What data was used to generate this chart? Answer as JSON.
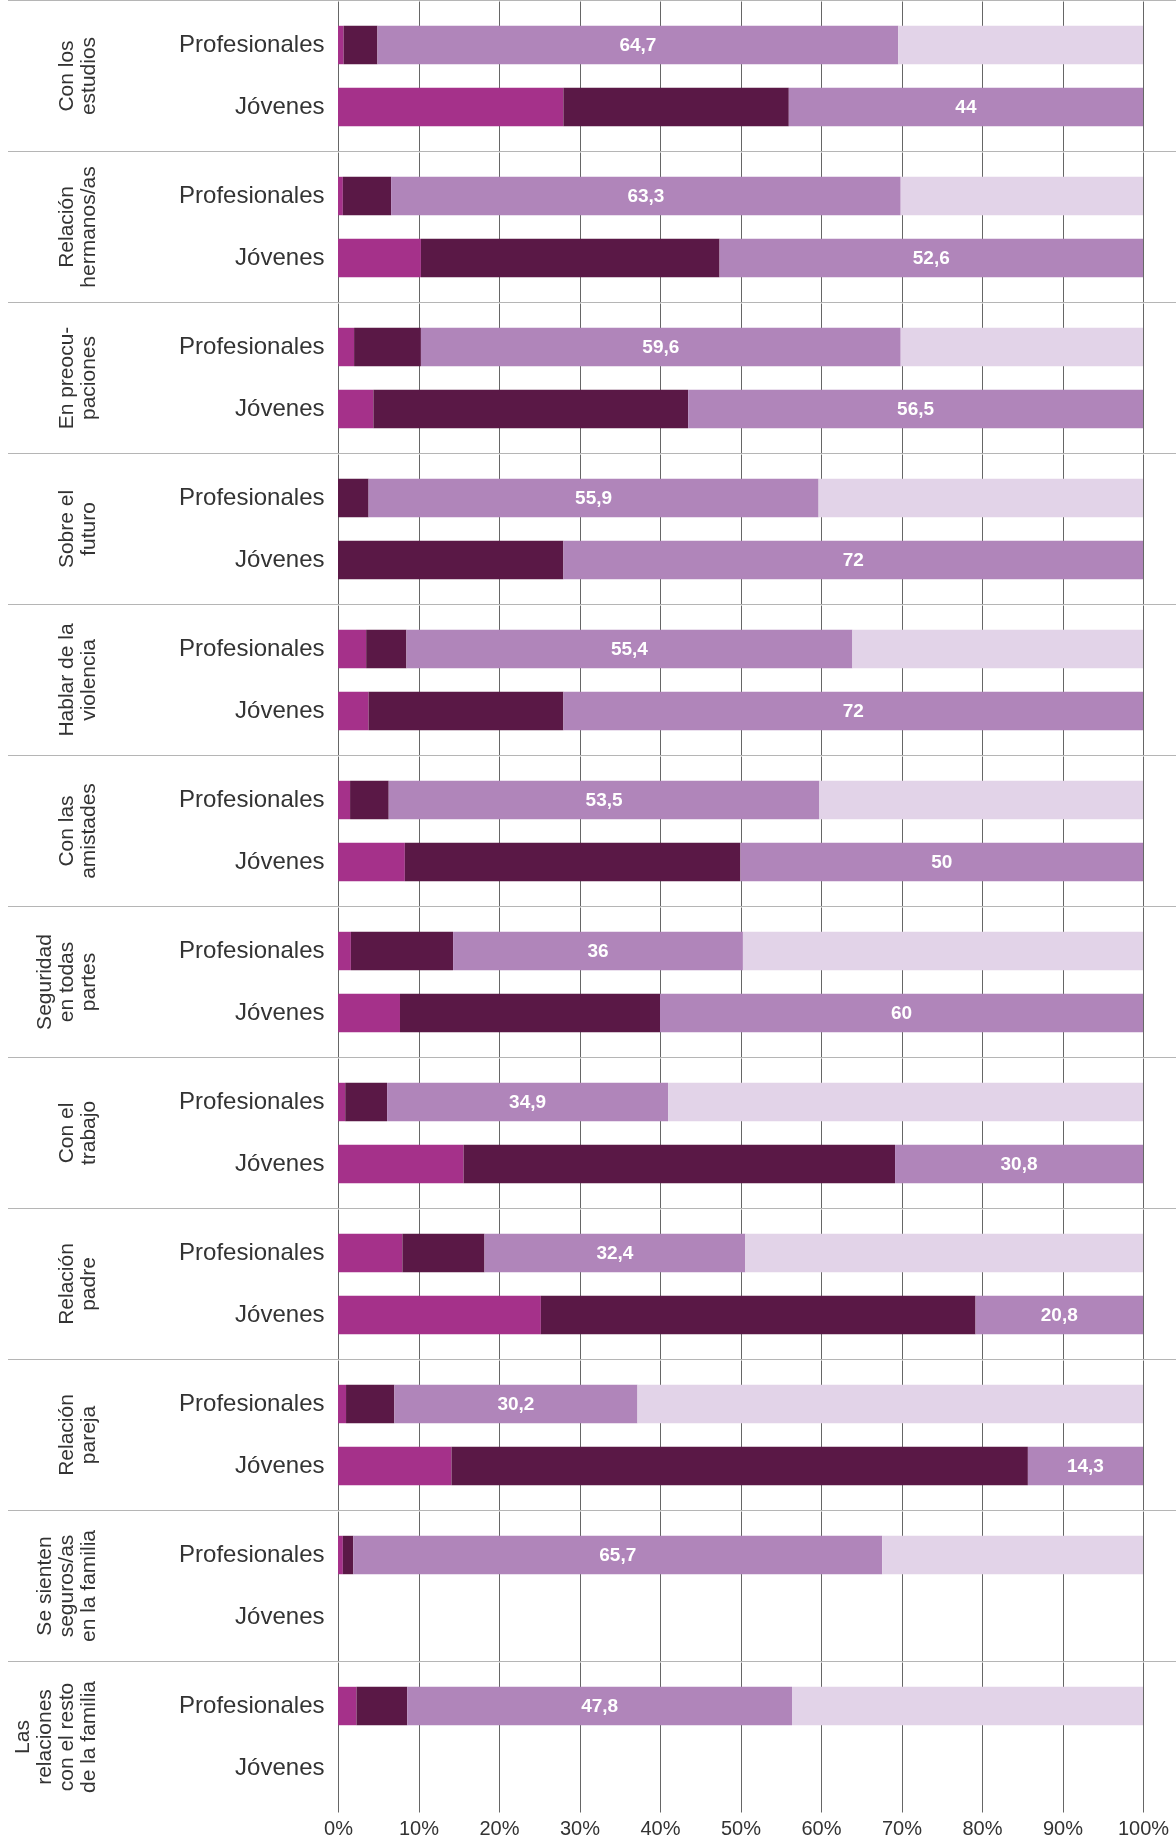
{
  "chart_data": [
    {
      "type": "bar",
      "orientation": "horizontal",
      "stacked": true,
      "title": "Con los\nestudios",
      "categories": [
        "Profesionales",
        "Jóvenes"
      ],
      "series": [
        {
          "color": "#a5318a",
          "values": [
            0.7,
            28
          ]
        },
        {
          "color": "#5a1846",
          "values": [
            4.2,
            28
          ]
        },
        {
          "color": "#b085ba",
          "values": [
            64.7,
            44
          ],
          "value_labels": [
            "64,7",
            "44"
          ]
        },
        {
          "color": "#e2d3e8",
          "values": [
            30.4,
            null
          ]
        }
      ],
      "xlim": [
        0,
        100
      ],
      "xticks": [
        0,
        10,
        20,
        30,
        40,
        50,
        60,
        70,
        80,
        90,
        100
      ],
      "grid": "x",
      "tick_labels": "y"
    },
    {
      "type": "bar",
      "orientation": "horizontal",
      "stacked": true,
      "title": "Relación\nhermanos/as",
      "categories": [
        "Profesionales",
        "Jóvenes"
      ],
      "series": [
        {
          "color": "#a5318a",
          "values": [
            0.6,
            10.3
          ]
        },
        {
          "color": "#5a1846",
          "values": [
            6.0,
            37.1
          ]
        },
        {
          "color": "#b085ba",
          "values": [
            63.3,
            52.6
          ],
          "value_labels": [
            "63,3",
            "52,6"
          ]
        },
        {
          "color": "#e2d3e8",
          "values": [
            30.1,
            null
          ]
        }
      ],
      "xlim": [
        0,
        100
      ],
      "xticks": [
        0,
        10,
        20,
        30,
        40,
        50,
        60,
        70,
        80,
        90,
        100
      ],
      "grid": "x",
      "tick_labels": "y"
    },
    {
      "type": "bar",
      "orientation": "horizontal",
      "stacked": true,
      "title": "En preocu-\npaciones",
      "categories": [
        "Profesionales",
        "Jóvenes"
      ],
      "series": [
        {
          "color": "#a5318a",
          "values": [
            2.0,
            4.4
          ]
        },
        {
          "color": "#5a1846",
          "values": [
            8.3,
            39.1
          ]
        },
        {
          "color": "#b085ba",
          "values": [
            59.6,
            56.5
          ],
          "value_labels": [
            "59,6",
            "56,5"
          ]
        },
        {
          "color": "#e2d3e8",
          "values": [
            30.1,
            null
          ]
        }
      ],
      "xlim": [
        0,
        100
      ],
      "xticks": [
        0,
        10,
        20,
        30,
        40,
        50,
        60,
        70,
        80,
        90,
        100
      ],
      "grid": "x",
      "tick_labels": "y"
    },
    {
      "type": "bar",
      "orientation": "horizontal",
      "stacked": true,
      "title": "Sobre el\nfuturo",
      "categories": [
        "Profesionales",
        "Jóvenes"
      ],
      "series": [
        {
          "color": "#a5318a",
          "values": [
            null,
            null
          ]
        },
        {
          "color": "#5a1846",
          "values": [
            3.8,
            28
          ]
        },
        {
          "color": "#b085ba",
          "values": [
            55.9,
            72
          ],
          "value_labels": [
            "55,9",
            "72"
          ]
        },
        {
          "color": "#e2d3e8",
          "values": [
            40.3,
            null
          ]
        }
      ],
      "xlim": [
        0,
        100
      ],
      "xticks": [
        0,
        10,
        20,
        30,
        40,
        50,
        60,
        70,
        80,
        90,
        100
      ],
      "grid": "x",
      "tick_labels": "y"
    },
    {
      "type": "bar",
      "orientation": "horizontal",
      "stacked": true,
      "title": "Hablar de la\nviolencia",
      "categories": [
        "Profesionales",
        "Jóvenes"
      ],
      "series": [
        {
          "color": "#a5318a",
          "values": [
            3.5,
            3.8
          ]
        },
        {
          "color": "#5a1846",
          "values": [
            5.0,
            24.2
          ]
        },
        {
          "color": "#b085ba",
          "values": [
            55.4,
            72
          ],
          "value_labels": [
            "55,4",
            "72"
          ]
        },
        {
          "color": "#e2d3e8",
          "values": [
            36.1,
            null
          ]
        }
      ],
      "xlim": [
        0,
        100
      ],
      "xticks": [
        0,
        10,
        20,
        30,
        40,
        50,
        60,
        70,
        80,
        90,
        100
      ],
      "grid": "x",
      "tick_labels": "y"
    },
    {
      "type": "bar",
      "orientation": "horizontal",
      "stacked": true,
      "title": "Con las\namistades",
      "categories": [
        "Profesionales",
        "Jóvenes"
      ],
      "series": [
        {
          "color": "#a5318a",
          "values": [
            1.5,
            8.3
          ]
        },
        {
          "color": "#5a1846",
          "values": [
            4.8,
            41.7
          ]
        },
        {
          "color": "#b085ba",
          "values": [
            53.5,
            50
          ],
          "value_labels": [
            "53,5",
            "50"
          ]
        },
        {
          "color": "#e2d3e8",
          "values": [
            40.2,
            null
          ]
        }
      ],
      "xlim": [
        0,
        100
      ],
      "xticks": [
        0,
        10,
        20,
        30,
        40,
        50,
        60,
        70,
        80,
        90,
        100
      ],
      "grid": "x",
      "tick_labels": "y"
    },
    {
      "type": "bar",
      "orientation": "horizontal",
      "stacked": true,
      "title": "Seguridad\nen todas\npartes",
      "categories": [
        "Profesionales",
        "Jóvenes"
      ],
      "series": [
        {
          "color": "#a5318a",
          "values": [
            1.6,
            7.7
          ]
        },
        {
          "color": "#5a1846",
          "values": [
            12.7,
            32.3
          ]
        },
        {
          "color": "#b085ba",
          "values": [
            36,
            60
          ],
          "value_labels": [
            "36",
            "60"
          ]
        },
        {
          "color": "#e2d3e8",
          "values": [
            49.7,
            null
          ]
        }
      ],
      "xlim": [
        0,
        100
      ],
      "xticks": [
        0,
        10,
        20,
        30,
        40,
        50,
        60,
        70,
        80,
        90,
        100
      ],
      "grid": "x",
      "tick_labels": "y"
    },
    {
      "type": "bar",
      "orientation": "horizontal",
      "stacked": true,
      "title": "Con el\ntrabajo",
      "categories": [
        "Profesionales",
        "Jóvenes"
      ],
      "series": [
        {
          "color": "#a5318a",
          "values": [
            0.9,
            15.6
          ]
        },
        {
          "color": "#5a1846",
          "values": [
            5.2,
            53.6
          ]
        },
        {
          "color": "#b085ba",
          "values": [
            34.9,
            30.8
          ],
          "value_labels": [
            "34,9",
            "30,8"
          ]
        },
        {
          "color": "#e2d3e8",
          "values": [
            59,
            null
          ]
        }
      ],
      "xlim": [
        0,
        100
      ],
      "xticks": [
        0,
        10,
        20,
        30,
        40,
        50,
        60,
        70,
        80,
        90,
        100
      ],
      "grid": "x",
      "tick_labels": "y"
    },
    {
      "type": "bar",
      "orientation": "horizontal",
      "stacked": true,
      "title": "Relación\npadre",
      "categories": [
        "Profesionales",
        "Jóvenes"
      ],
      "series": [
        {
          "color": "#a5318a",
          "values": [
            8.0,
            25.2
          ]
        },
        {
          "color": "#5a1846",
          "values": [
            10.2,
            54.0
          ]
        },
        {
          "color": "#b085ba",
          "values": [
            32.4,
            20.8
          ],
          "value_labels": [
            "32,4",
            "20,8"
          ]
        },
        {
          "color": "#e2d3e8",
          "values": [
            49.4,
            null
          ]
        }
      ],
      "xlim": [
        0,
        100
      ],
      "xticks": [
        0,
        10,
        20,
        30,
        40,
        50,
        60,
        70,
        80,
        90,
        100
      ],
      "grid": "x",
      "tick_labels": "y"
    },
    {
      "type": "bar",
      "orientation": "horizontal",
      "stacked": true,
      "title": "Relación\npareja",
      "categories": [
        "Profesionales",
        "Jóvenes"
      ],
      "series": [
        {
          "color": "#a5318a",
          "values": [
            1.0,
            14.1
          ]
        },
        {
          "color": "#5a1846",
          "values": [
            6.0,
            71.6
          ]
        },
        {
          "color": "#b085ba",
          "values": [
            30.2,
            14.3
          ],
          "value_labels": [
            "30,2",
            "14,3"
          ]
        },
        {
          "color": "#e2d3e8",
          "values": [
            62.8,
            null
          ]
        }
      ],
      "xlim": [
        0,
        100
      ],
      "xticks": [
        0,
        10,
        20,
        30,
        40,
        50,
        60,
        70,
        80,
        90,
        100
      ],
      "grid": "x",
      "tick_labels": "y"
    },
    {
      "type": "bar",
      "orientation": "horizontal",
      "stacked": true,
      "title": "Se sienten\nseguros/as\nen la familia",
      "categories": [
        "Profesionales",
        "Jóvenes"
      ],
      "series": [
        {
          "color": "#a5318a",
          "values": [
            0.6,
            null
          ]
        },
        {
          "color": "#5a1846",
          "values": [
            1.3,
            null
          ]
        },
        {
          "color": "#b085ba",
          "values": [
            65.7,
            null
          ],
          "value_labels": [
            "65,7",
            null
          ]
        },
        {
          "color": "#e2d3e8",
          "values": [
            32.4,
            null
          ]
        }
      ],
      "xlim": [
        0,
        100
      ],
      "xticks": [
        0,
        10,
        20,
        30,
        40,
        50,
        60,
        70,
        80,
        90,
        100
      ],
      "grid": "x",
      "tick_labels": "y"
    },
    {
      "type": "bar",
      "orientation": "horizontal",
      "stacked": true,
      "title": "Las\nrelaciones\ncon el resto\nde la familia",
      "categories": [
        "Profesionales",
        "Jóvenes"
      ],
      "series": [
        {
          "color": "#a5318a",
          "values": [
            2.3,
            null
          ]
        },
        {
          "color": "#5a1846",
          "values": [
            6.3,
            null
          ]
        },
        {
          "color": "#b085ba",
          "values": [
            47.8,
            null
          ],
          "value_labels": [
            "47,8",
            null
          ]
        },
        {
          "color": "#e2d3e8",
          "values": [
            43.6,
            null
          ]
        }
      ],
      "xlim": [
        0,
        100
      ],
      "xticks": [
        {
          "value": 0,
          "label": "0%"
        },
        {
          "value": 10,
          "label": "10%"
        },
        {
          "value": 20,
          "label": "20%"
        },
        {
          "value": 30,
          "label": "30%"
        },
        {
          "value": 40,
          "label": "40%"
        },
        {
          "value": 50,
          "label": "50%"
        },
        {
          "value": 60,
          "label": "60%"
        },
        {
          "value": 70,
          "label": "70%"
        },
        {
          "value": 80,
          "label": "80%"
        },
        {
          "value": 90,
          "label": "90%"
        },
        {
          "value": 100,
          "label": "100%"
        }
      ],
      "grid": "x"
    }
  ]
}
